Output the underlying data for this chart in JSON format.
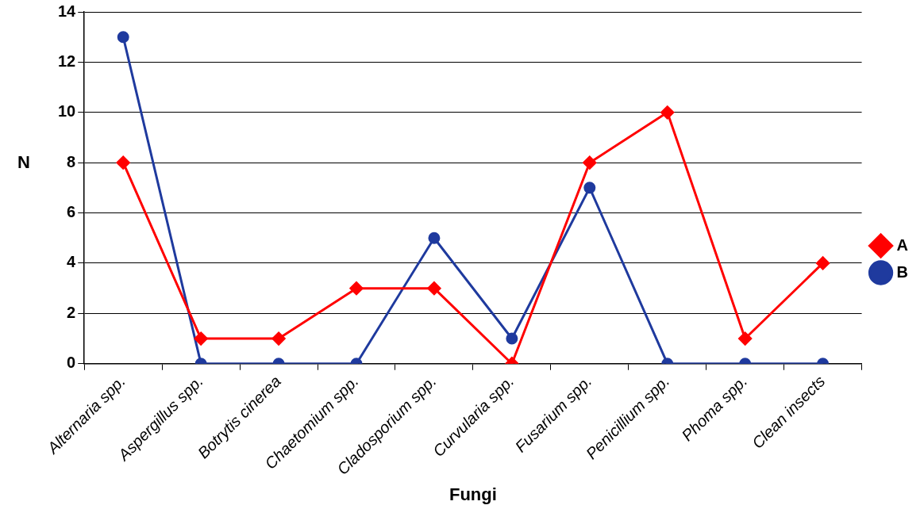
{
  "chart_data": {
    "type": "line",
    "xlabel": "Fungi",
    "ylabel": "N",
    "categories": [
      "Alternaria spp.",
      "Aspergillus spp.",
      "Botrytis cinerea",
      "Chaetomium spp.",
      "Cladosporium spp.",
      "Curvularia spp.",
      "Fusarium spp.",
      "Penicillium spp.",
      "Phoma spp.",
      "Clean insects"
    ],
    "series": [
      {
        "name": "A",
        "color": "#ff0000",
        "marker": "diamond",
        "values": [
          8,
          1,
          1,
          3,
          3,
          0,
          8,
          10,
          1,
          4
        ]
      },
      {
        "name": "B",
        "color": "#1f3a9e",
        "marker": "circle",
        "values": [
          13,
          0,
          0,
          0,
          5,
          1,
          7,
          0,
          0,
          0
        ]
      }
    ],
    "ylim": [
      0,
      14
    ],
    "yticks": [
      0,
      2,
      4,
      6,
      8,
      10,
      12,
      14
    ],
    "grid": "y",
    "legend": "right"
  }
}
